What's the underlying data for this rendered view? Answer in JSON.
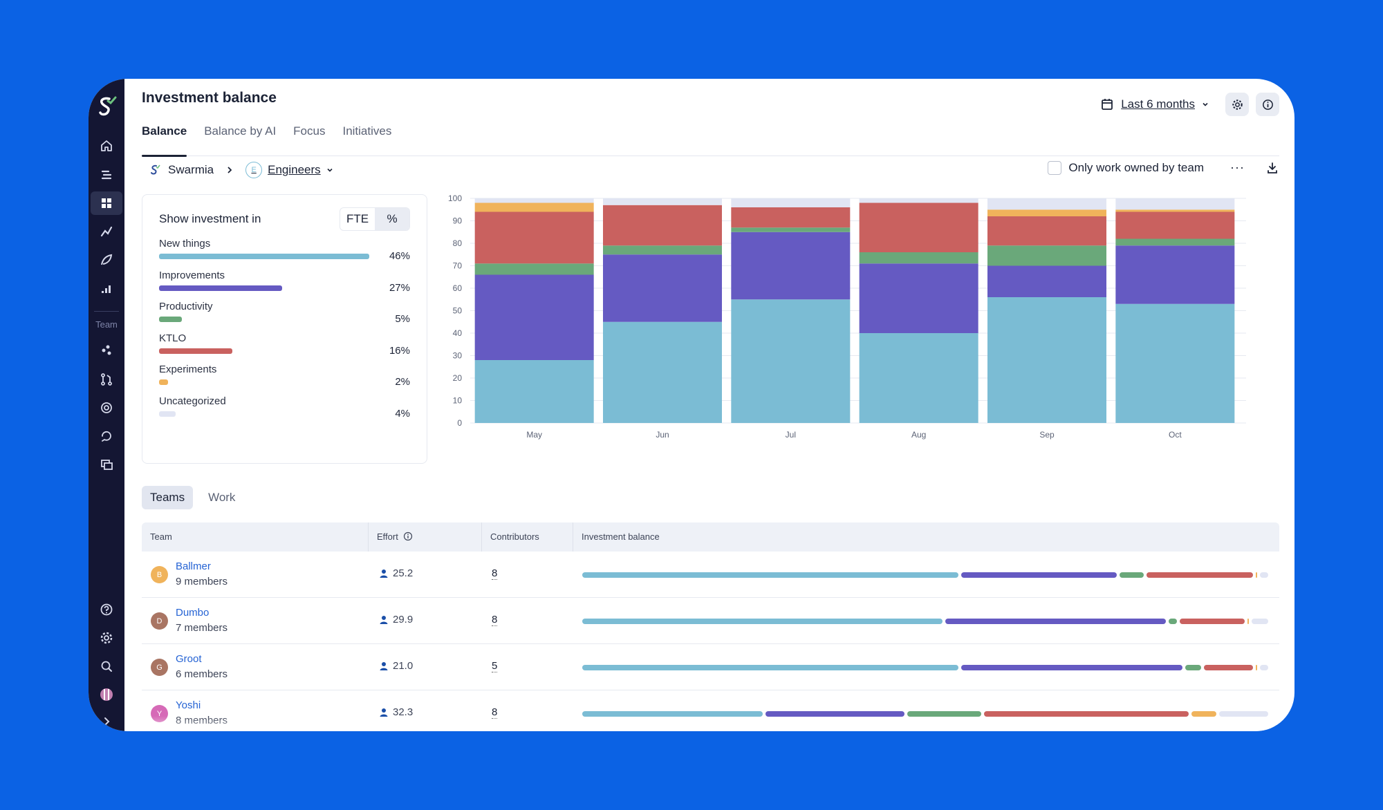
{
  "colors": {
    "new_things": "#7bbcd4",
    "improvements": "#655ac2",
    "productivity": "#6aa87a",
    "ktlo": "#c9615f",
    "experiments": "#f0b35b",
    "uncategorized": "#e1e5f3"
  },
  "page": {
    "title": "Investment balance",
    "tabs": [
      "Balance",
      "Balance by AI",
      "Focus",
      "Initiatives"
    ],
    "date_range": "Last 6 months"
  },
  "breadcrumb": {
    "org": "Swarmia",
    "team": "Engineers",
    "team_initial": "E",
    "only_owned_label": "Only work owned by team",
    "more": "···"
  },
  "sidebar": {
    "section_label": "Team"
  },
  "investment": {
    "title": "Show investment in",
    "toggle": [
      "FTE",
      "%"
    ],
    "categories": [
      {
        "name": "New things",
        "pct": "46%",
        "value": 46,
        "color": "#7bbcd4"
      },
      {
        "name": "Improvements",
        "pct": "27%",
        "value": 27,
        "color": "#655ac2"
      },
      {
        "name": "Productivity",
        "pct": "5%",
        "value": 5,
        "color": "#6aa87a"
      },
      {
        "name": "KTLO",
        "pct": "16%",
        "value": 16,
        "color": "#c9615f"
      },
      {
        "name": "Experiments",
        "pct": "2%",
        "value": 2,
        "color": "#f0b35b"
      },
      {
        "name": "Uncategorized",
        "pct": "4%",
        "value": 4,
        "color": "#e1e5f3"
      }
    ]
  },
  "chart_data": {
    "type": "bar",
    "stacked": true,
    "categories": [
      "May",
      "Jun",
      "Jul",
      "Aug",
      "Sep",
      "Oct"
    ],
    "ylim": [
      0,
      100
    ],
    "yticks": [
      0,
      10,
      20,
      30,
      40,
      50,
      60,
      70,
      80,
      90,
      100
    ],
    "series": [
      {
        "name": "New things",
        "color": "#7bbcd4",
        "values": [
          28,
          45,
          55,
          40,
          56,
          53
        ]
      },
      {
        "name": "Improvements",
        "color": "#655ac2",
        "values": [
          38,
          30,
          30,
          31,
          14,
          26
        ]
      },
      {
        "name": "Productivity",
        "color": "#6aa87a",
        "values": [
          5,
          4,
          2,
          5,
          9,
          3
        ]
      },
      {
        "name": "KTLO",
        "color": "#c9615f",
        "values": [
          23,
          18,
          9,
          22,
          13,
          12
        ]
      },
      {
        "name": "Experiments",
        "color": "#f0b35b",
        "values": [
          4,
          0,
          0,
          0,
          3,
          1
        ]
      },
      {
        "name": "Uncategorized",
        "color": "#e1e5f3",
        "values": [
          2,
          3,
          4,
          2,
          5,
          5
        ]
      }
    ]
  },
  "subtabs": [
    "Teams",
    "Work"
  ],
  "table": {
    "headers": [
      "Team",
      "Effort",
      "Contributors",
      "Investment balance"
    ],
    "rows": [
      {
        "name": "Ballmer",
        "initial": "B",
        "avatar_color": "#f0b35b",
        "members": "9 members",
        "effort": "25.2",
        "contributors": "8",
        "balance": [
          46,
          19,
          3,
          13,
          0,
          1
        ]
      },
      {
        "name": "Dumbo",
        "initial": "D",
        "avatar_color": "#a97563",
        "members": "7 members",
        "effort": "29.9",
        "contributors": "8",
        "balance": [
          44,
          27,
          1,
          8,
          0,
          2
        ]
      },
      {
        "name": "Groot",
        "initial": "G",
        "avatar_color": "#a97563",
        "members": "6 members",
        "effort": "21.0",
        "contributors": "5",
        "balance": [
          46,
          27,
          2,
          6,
          0,
          1
        ]
      },
      {
        "name": "Yoshi",
        "initial": "Y",
        "avatar_color": "#d66ab7",
        "members": "8 members",
        "effort": "32.3",
        "contributors": "8",
        "balance": [
          22,
          17,
          9,
          25,
          3,
          6
        ]
      }
    ]
  }
}
